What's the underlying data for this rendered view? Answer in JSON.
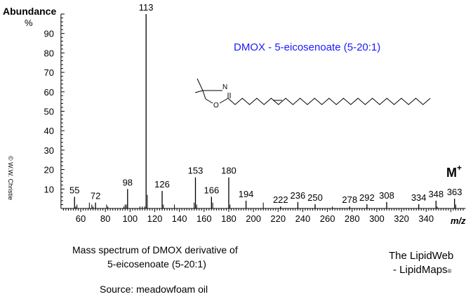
{
  "chart_data": {
    "type": "bar",
    "title": "DMOX - 5-eicosenoate (5-20:1)",
    "xlabel": "m/z",
    "ylabel": "Abundance",
    "ylabel_unit": "%",
    "xlim": [
      44,
      372
    ],
    "ylim": [
      0,
      100
    ],
    "x_ticks": [
      60,
      80,
      100,
      120,
      140,
      160,
      180,
      200,
      220,
      240,
      260,
      280,
      300,
      320,
      340
    ],
    "y_ticks": [
      10,
      20,
      30,
      40,
      50,
      60,
      70,
      80,
      90
    ],
    "peaks": [
      {
        "mz": 55,
        "intensity": 6,
        "label": "55"
      },
      {
        "mz": 56,
        "intensity": 1
      },
      {
        "mz": 57,
        "intensity": 2
      },
      {
        "mz": 67,
        "intensity": 3
      },
      {
        "mz": 69,
        "intensity": 2
      },
      {
        "mz": 70,
        "intensity": 1
      },
      {
        "mz": 72,
        "intensity": 3,
        "label": "72"
      },
      {
        "mz": 81,
        "intensity": 2
      },
      {
        "mz": 82,
        "intensity": 1
      },
      {
        "mz": 95,
        "intensity": 1
      },
      {
        "mz": 96,
        "intensity": 2
      },
      {
        "mz": 97,
        "intensity": 2
      },
      {
        "mz": 98,
        "intensity": 10,
        "label": "98"
      },
      {
        "mz": 108,
        "intensity": 1
      },
      {
        "mz": 110,
        "intensity": 1
      },
      {
        "mz": 112,
        "intensity": 1
      },
      {
        "mz": 113,
        "intensity": 100,
        "label": "113"
      },
      {
        "mz": 114,
        "intensity": 7
      },
      {
        "mz": 126,
        "intensity": 9,
        "label": "126"
      },
      {
        "mz": 127,
        "intensity": 2
      },
      {
        "mz": 136,
        "intensity": 2
      },
      {
        "mz": 152,
        "intensity": 3
      },
      {
        "mz": 153,
        "intensity": 16,
        "label": "153"
      },
      {
        "mz": 154,
        "intensity": 2
      },
      {
        "mz": 166,
        "intensity": 6,
        "label": "166"
      },
      {
        "mz": 167,
        "intensity": 3
      },
      {
        "mz": 180,
        "intensity": 16,
        "label": "180"
      },
      {
        "mz": 181,
        "intensity": 2
      },
      {
        "mz": 194,
        "intensity": 4,
        "label": "194"
      },
      {
        "mz": 208,
        "intensity": 3
      },
      {
        "mz": 222,
        "intensity": 1,
        "label": "222"
      },
      {
        "mz": 236,
        "intensity": 3.3,
        "label": "236"
      },
      {
        "mz": 250,
        "intensity": 2.2,
        "label": "250"
      },
      {
        "mz": 264,
        "intensity": 1
      },
      {
        "mz": 278,
        "intensity": 1,
        "label": "278"
      },
      {
        "mz": 292,
        "intensity": 2.2,
        "label": "292"
      },
      {
        "mz": 308,
        "intensity": 3.3,
        "label": "308"
      },
      {
        "mz": 334,
        "intensity": 2.2,
        "label": "334"
      },
      {
        "mz": 348,
        "intensity": 4,
        "label": "348"
      },
      {
        "mz": 349,
        "intensity": 1
      },
      {
        "mz": 363,
        "intensity": 5,
        "label": "363"
      },
      {
        "mz": 364,
        "intensity": 2
      }
    ],
    "annotation_molecular_ion": "M",
    "annotation_molecular_ion_sup": "+"
  },
  "structure": {
    "atom_n": "N",
    "atom_o": "O"
  },
  "caption": {
    "line1": "Mass spectrum of DMOX derivative of",
    "line2": "5-eicosenoate (5-20:1)",
    "source": "Source:  meadowfoam oil"
  },
  "branding": {
    "line1": "The LipidWeb",
    "line2": "- LipidMaps",
    "reg": "®"
  },
  "copyright": "© W.W. Christie",
  "colors": {
    "title": "#1a1aff",
    "ink": "#000000"
  }
}
